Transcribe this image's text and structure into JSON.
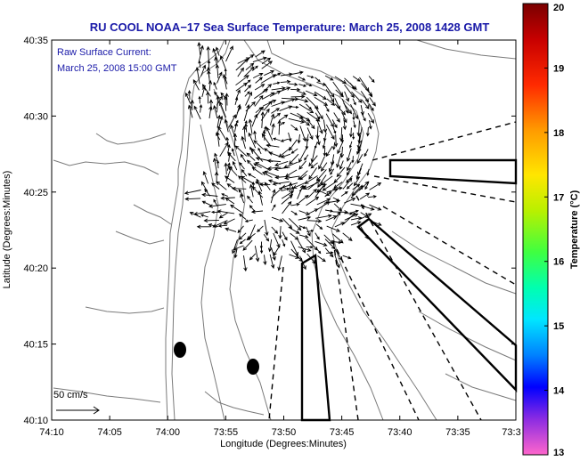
{
  "chart_data": {
    "type": "map",
    "title": "RU COOL  NOAA−17  Sea Surface Temperature:  March 25, 2008 1428 GMT",
    "xlabel": "Longitude (Degrees:Minutes)",
    "ylabel": "Latitude (Degrees:Minutes)",
    "x_ticks": [
      "74:10",
      "74:05",
      "74:00",
      "73:55",
      "73:50",
      "73:45",
      "73:40",
      "73:35",
      "73:3"
    ],
    "y_ticks": [
      "40:35",
      "40:30",
      "40:25",
      "40:20",
      "40:15",
      "40:10"
    ],
    "annotation_line1": "Raw Surface Current:",
    "annotation_line2": "March 25, 2008 15:00 GMT",
    "scale_label": "50 cm/s",
    "colorbar": {
      "label": "Temperature (°C)",
      "ticks": [
        "20",
        "19",
        "18",
        "17",
        "16",
        "15",
        "14",
        "13"
      ],
      "min": 13,
      "max": 20
    }
  }
}
